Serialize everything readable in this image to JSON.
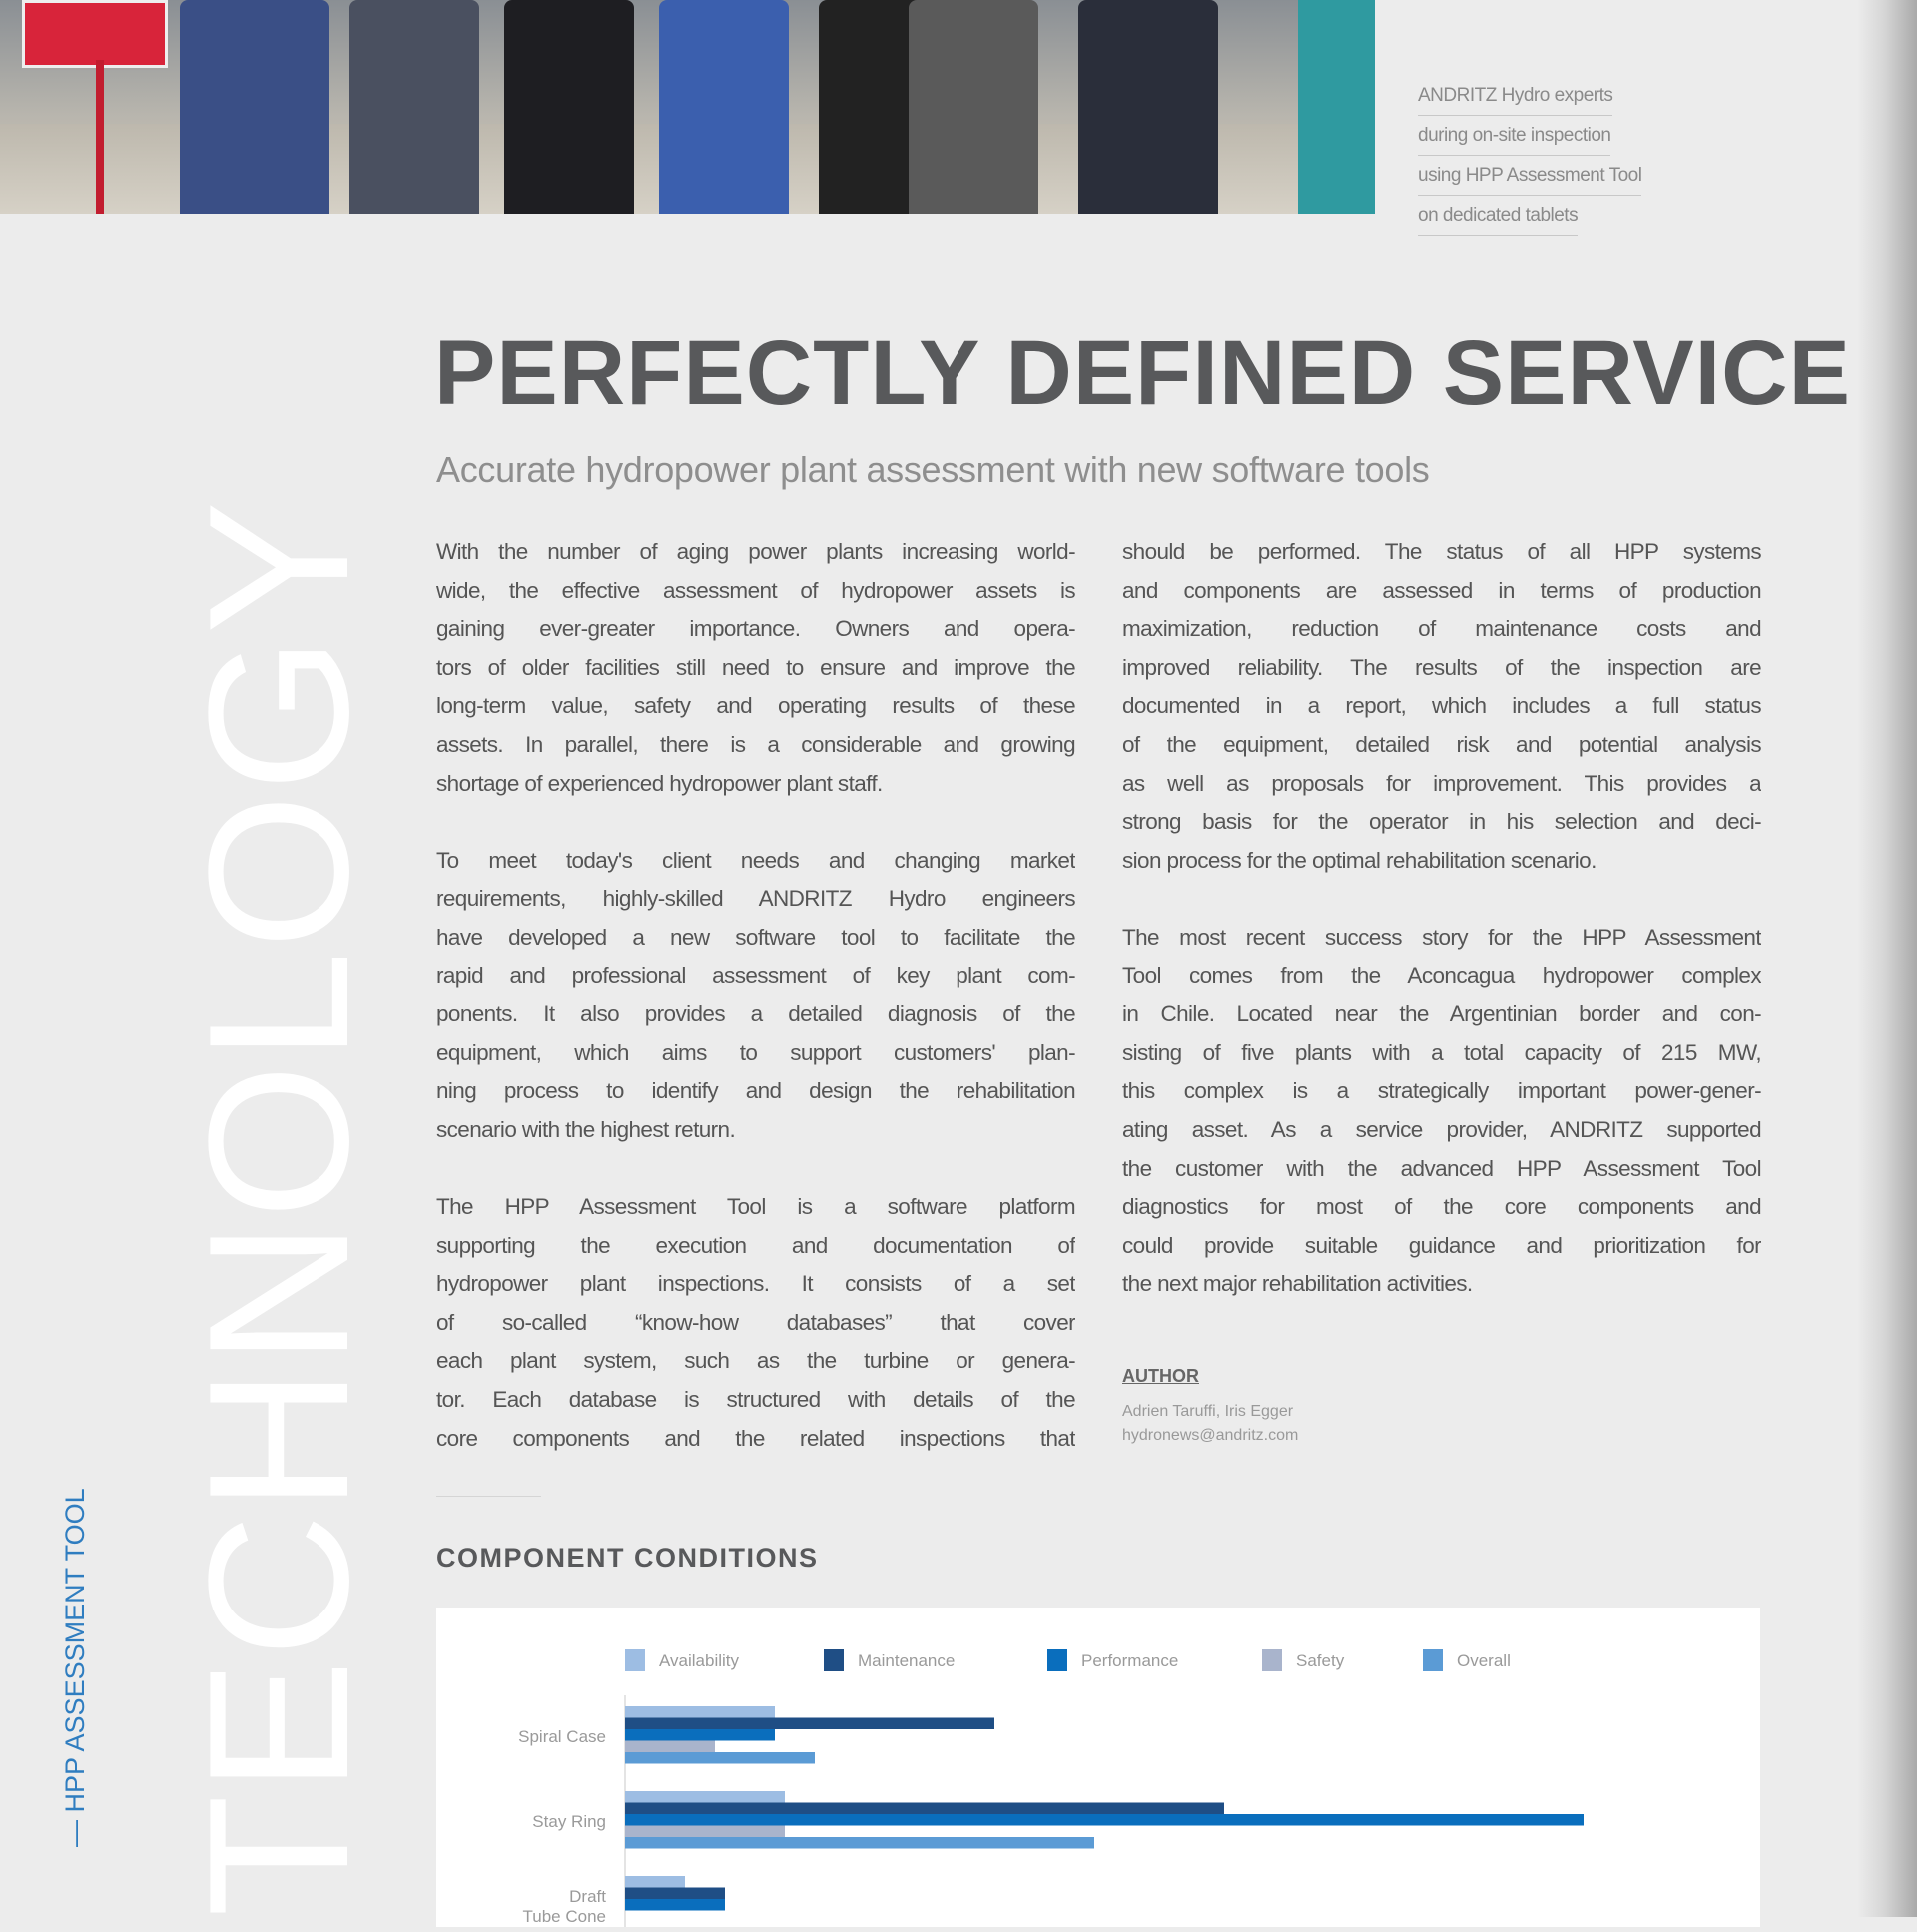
{
  "photo": {
    "caption": [
      "ANDRITZ Hydro experts",
      "during on-site inspection",
      "using HPP Assessment Tool",
      "on dedicated tablets"
    ]
  },
  "side": {
    "section_big": "TECHNOLOGY",
    "section_small": "— HPP ASSESSMENT TOOL"
  },
  "article": {
    "title": "PERFECTLY DEFINED SERVICE",
    "subtitle": "Accurate hydropower plant assessment with new software tools",
    "left_column": [
      {
        "lines": [
          "With the number of aging power plants increasing world-",
          "wide, the effective assessment of hydropower assets is",
          "gaining ever-greater importance. Owners and opera-",
          "tors of older facilities still need to ensure and improve the",
          "long-term value, safety and operating results of these",
          "assets. In parallel, there is a considerable and growing",
          "shortage of experienced hydropower plant staff."
        ],
        "ends": true
      },
      {
        "lines": [
          "To meet today's client needs and changing market",
          "requirements, highly-skilled ANDRITZ Hydro engineers",
          "have developed a new software tool to facilitate the",
          "rapid and professional assessment of key plant com-",
          "ponents. It also provides a detailed diagnosis of the",
          "equipment, which aims to support customers' plan-",
          "ning process to identify and design the rehabilitation",
          "scenario with the highest return."
        ],
        "ends": true
      },
      {
        "lines": [
          "The HPP Assessment Tool is a software platform",
          "supporting the execution and documentation of",
          "hydropower plant inspections. It consists of a set",
          "of so-called “know-how databases” that cover",
          "each plant system, such as the turbine or genera-",
          "tor. Each database is structured with details of the",
          "core components and the related inspections that"
        ],
        "ends": false
      }
    ],
    "right_column": [
      {
        "lines": [
          "should be performed. The status of all HPP systems",
          "and components are assessed in terms of production",
          "maximization, reduction of maintenance costs and",
          "improved reliability. The results of the inspection are",
          "documented in a report, which includes a full status",
          "of the equipment, detailed risk and potential analysis",
          "as well as proposals for improvement. This provides a",
          "strong basis for the operator in his selection and deci-",
          "sion process for the optimal rehabilitation scenario."
        ],
        "ends": true
      },
      {
        "lines": [
          "The most recent success story for the HPP Assessment",
          "Tool comes from the Aconcagua hydropower complex",
          "in Chile. Located near the Argentinian border and con-",
          "sisting of five plants with a total capacity of 215 MW,",
          "this complex is a strategically important power-gener-",
          "ating asset. As a service provider, ANDRITZ supported",
          "the customer with the advanced HPP Assessment Tool",
          "diagnostics for most of the core components and",
          "could provide suitable guidance and prioritization for",
          "the next major rehabilitation activities."
        ],
        "ends": true
      }
    ],
    "author": {
      "label": "AUTHOR",
      "names": "Adrien Taruffi, Iris Egger",
      "email": "hydronews@andritz.com"
    },
    "section_heading": "COMPONENT CONDITIONS"
  },
  "chart_data": {
    "type": "bar",
    "orientation": "horizontal",
    "title": "",
    "categories": [
      "Spiral Case",
      "Stay Ring",
      "Draft Tube Cone"
    ],
    "series": [
      {
        "name": "Availability",
        "color": "#9dbde3",
        "values": [
          15,
          16,
          6
        ]
      },
      {
        "name": "Maintenance",
        "color": "#1f4e85",
        "values": [
          37,
          60,
          10
        ]
      },
      {
        "name": "Performance",
        "color": "#0a6ebd",
        "values": [
          15,
          96,
          10
        ]
      },
      {
        "name": "Safety",
        "color": "#a9b4cc",
        "values": [
          9,
          16,
          null
        ]
      },
      {
        "name": "Overall",
        "color": "#5b9bd5",
        "values": [
          19,
          47,
          null
        ]
      }
    ],
    "xlim": [
      0,
      100
    ],
    "grid": false,
    "legend": "top"
  }
}
